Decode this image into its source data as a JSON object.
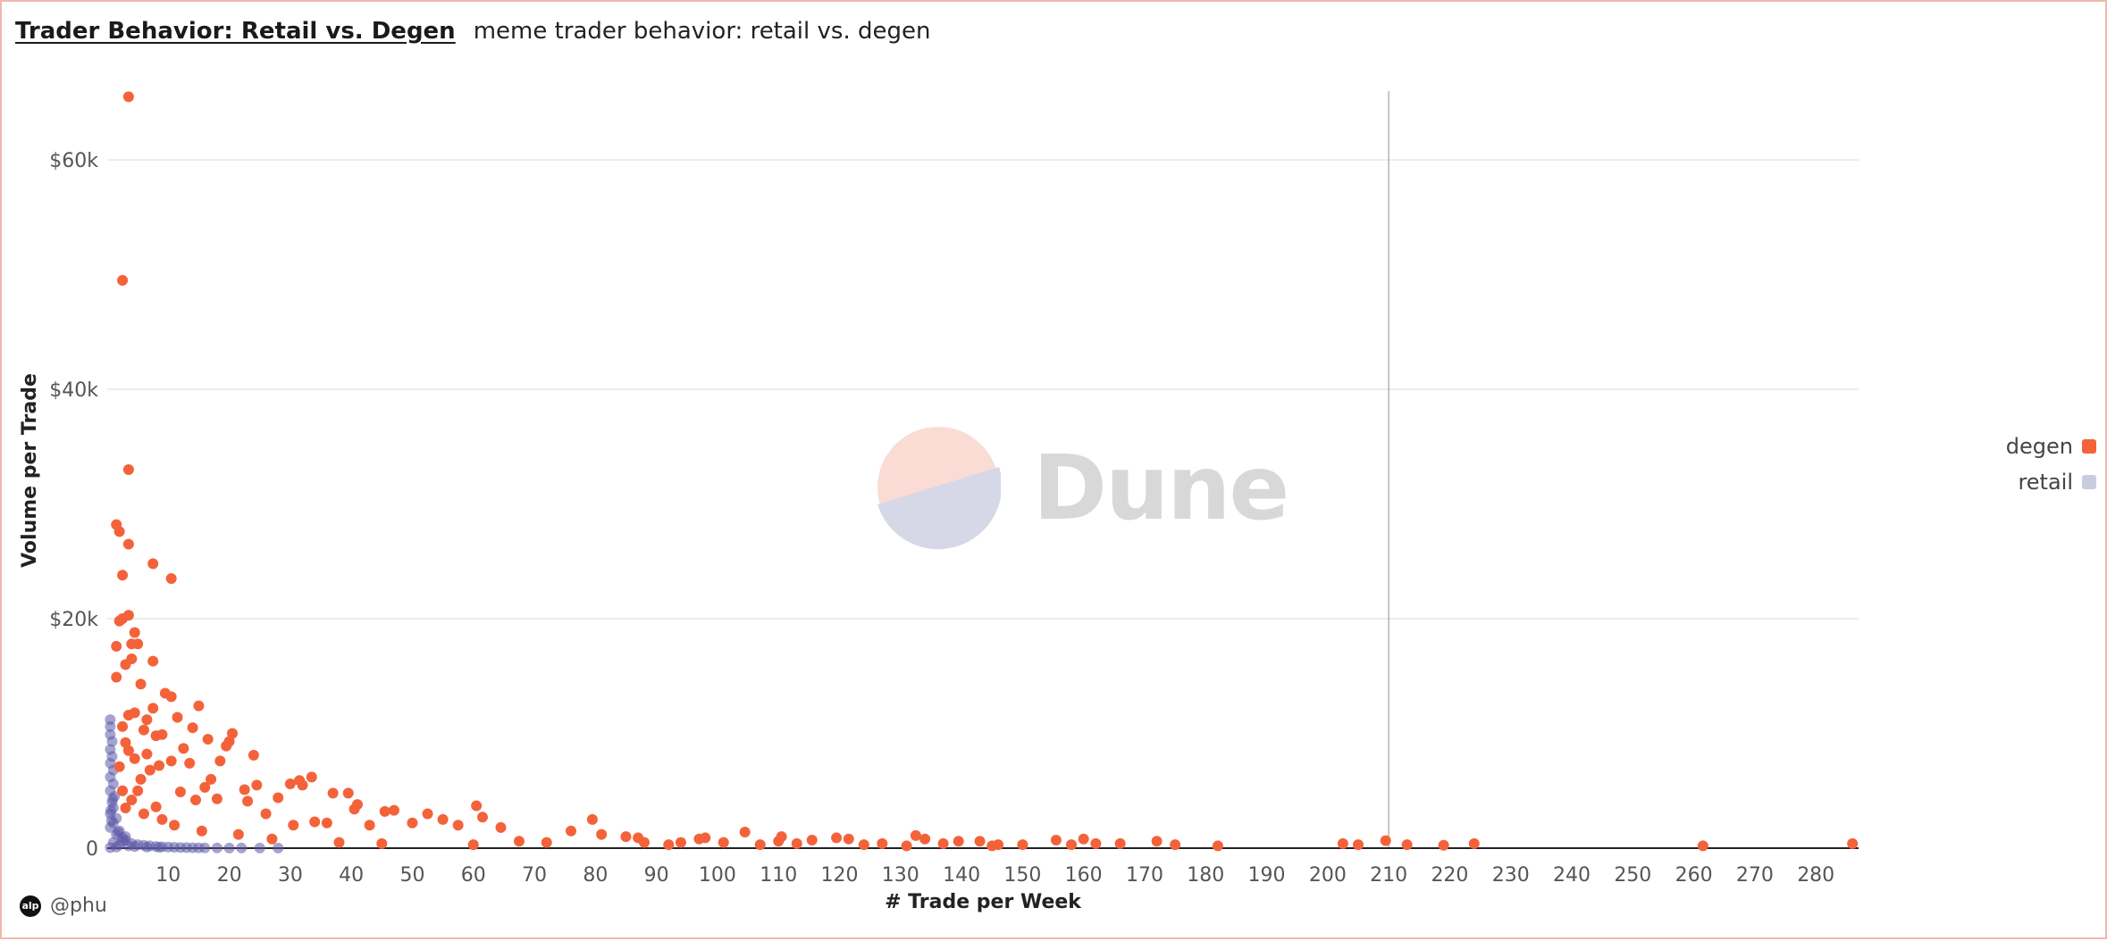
{
  "header": {
    "title": "Trader Behavior: Retail vs. Degen",
    "subtitle": "meme trader behavior: retail vs. degen"
  },
  "legend": [
    {
      "name": "degen",
      "color": "#f4623a"
    },
    {
      "name": "retail",
      "color": "#c9cbe0"
    }
  ],
  "watermark": {
    "text": "Dune",
    "top_color": "#fadcd5",
    "bottom_color": "#d6d8e8"
  },
  "footer": {
    "avatar_text": "alp",
    "handle": "@phu"
  },
  "chart_data": {
    "type": "scatter",
    "title": "Trader Behavior: Retail vs. Degen",
    "xlabel": "# Trade per Week",
    "ylabel": "Volume per Trade",
    "xlim": [
      0,
      287
    ],
    "ylim": [
      0,
      66000
    ],
    "x_ticks": [
      10,
      20,
      30,
      40,
      50,
      60,
      70,
      80,
      90,
      100,
      110,
      120,
      130,
      140,
      150,
      160,
      170,
      180,
      190,
      200,
      210,
      220,
      230,
      240,
      250,
      260,
      270,
      280
    ],
    "x_tick_labels": [
      "10",
      "20",
      "30",
      "40",
      "50",
      "60",
      "70",
      "80",
      "90",
      "100",
      "110",
      "120",
      "130",
      "140",
      "150",
      "160",
      "170",
      "180",
      "190",
      "200",
      "210",
      "220",
      "230",
      "240",
      "250",
      "260",
      "270",
      "280"
    ],
    "y_ticks": [
      0,
      20000,
      40000,
      60000
    ],
    "y_tick_labels": [
      "0",
      "$20k",
      "$40k",
      "$60k"
    ],
    "grid": true,
    "legend_position": "right",
    "crosshair_x": 210,
    "series": [
      {
        "name": "degen",
        "color": "#f4623a",
        "points": [
          [
            3.5,
            65500
          ],
          [
            2.5,
            49500
          ],
          [
            3.5,
            33000
          ],
          [
            1.5,
            28200
          ],
          [
            2.0,
            27600
          ],
          [
            3.5,
            26500
          ],
          [
            2.5,
            23800
          ],
          [
            7.5,
            24800
          ],
          [
            10.5,
            23500
          ],
          [
            2.5,
            20000
          ],
          [
            3.5,
            20300
          ],
          [
            2.0,
            19800
          ],
          [
            4.5,
            18800
          ],
          [
            1.5,
            17600
          ],
          [
            4.0,
            17800
          ],
          [
            5.0,
            17800
          ],
          [
            3.0,
            16000
          ],
          [
            4.0,
            16500
          ],
          [
            7.5,
            16300
          ],
          [
            1.5,
            14900
          ],
          [
            5.5,
            14300
          ],
          [
            9.5,
            13500
          ],
          [
            10.5,
            13200
          ],
          [
            15.0,
            12400
          ],
          [
            7.5,
            12200
          ],
          [
            3.5,
            11600
          ],
          [
            4.5,
            11800
          ],
          [
            11.5,
            11400
          ],
          [
            14.0,
            10500
          ],
          [
            6.0,
            10300
          ],
          [
            2.5,
            10600
          ],
          [
            20.5,
            10000
          ],
          [
            9.0,
            9900
          ],
          [
            16.5,
            9500
          ],
          [
            20.0,
            9300
          ],
          [
            19.5,
            8900
          ],
          [
            3.0,
            9200
          ],
          [
            12.5,
            8700
          ],
          [
            24.0,
            8100
          ],
          [
            6.5,
            8200
          ],
          [
            4.5,
            7800
          ],
          [
            18.5,
            7600
          ],
          [
            13.5,
            7400
          ],
          [
            10.5,
            7600
          ],
          [
            8.5,
            7200
          ],
          [
            2.0,
            7100
          ],
          [
            33.5,
            6200
          ],
          [
            31.5,
            5900
          ],
          [
            30.0,
            5600
          ],
          [
            32.0,
            5500
          ],
          [
            17.0,
            6000
          ],
          [
            24.5,
            5500
          ],
          [
            16.0,
            5300
          ],
          [
            22.5,
            5100
          ],
          [
            5.0,
            5000
          ],
          [
            12.0,
            4900
          ],
          [
            37.0,
            4800
          ],
          [
            39.5,
            4800
          ],
          [
            28.0,
            4400
          ],
          [
            18.0,
            4300
          ],
          [
            23.0,
            4100
          ],
          [
            14.5,
            4200
          ],
          [
            41.0,
            3800
          ],
          [
            60.5,
            3700
          ],
          [
            40.5,
            3400
          ],
          [
            47.0,
            3300
          ],
          [
            45.5,
            3200
          ],
          [
            52.5,
            3000
          ],
          [
            26.0,
            3000
          ],
          [
            8.0,
            3600
          ],
          [
            61.5,
            2700
          ],
          [
            79.5,
            2500
          ],
          [
            55.0,
            2500
          ],
          [
            34.0,
            2300
          ],
          [
            36.0,
            2200
          ],
          [
            50.0,
            2200
          ],
          [
            57.5,
            2000
          ],
          [
            30.5,
            2000
          ],
          [
            43.0,
            2000
          ],
          [
            64.5,
            1800
          ],
          [
            104.5,
            1400
          ],
          [
            76.0,
            1500
          ],
          [
            81.0,
            1200
          ],
          [
            85.0,
            1000
          ],
          [
            110.5,
            1000
          ],
          [
            119.5,
            900
          ],
          [
            132.5,
            1100
          ],
          [
            87.0,
            900
          ],
          [
            98.0,
            900
          ],
          [
            97.0,
            800
          ],
          [
            121.5,
            800
          ],
          [
            160.0,
            800
          ],
          [
            134.0,
            800
          ],
          [
            115.5,
            700
          ],
          [
            155.5,
            700
          ],
          [
            139.5,
            600
          ],
          [
            143.0,
            600
          ],
          [
            110.0,
            600
          ],
          [
            209.5,
            650
          ],
          [
            172.0,
            600
          ],
          [
            67.5,
            600
          ],
          [
            72.0,
            500
          ],
          [
            88.0,
            500
          ],
          [
            94.0,
            500
          ],
          [
            101.0,
            500
          ],
          [
            113.0,
            400
          ],
          [
            127.0,
            400
          ],
          [
            137.0,
            400
          ],
          [
            146.0,
            300
          ],
          [
            150.0,
            300
          ],
          [
            162.0,
            400
          ],
          [
            166.0,
            400
          ],
          [
            175.0,
            300
          ],
          [
            182.0,
            200
          ],
          [
            202.5,
            400
          ],
          [
            205.0,
            300
          ],
          [
            213.0,
            300
          ],
          [
            219.0,
            250
          ],
          [
            224.0,
            400
          ],
          [
            261.5,
            200
          ],
          [
            286.0,
            400
          ],
          [
            92.0,
            300
          ],
          [
            107.0,
            300
          ],
          [
            124.0,
            300
          ],
          [
            131.0,
            200
          ],
          [
            145.0,
            200
          ],
          [
            158.0,
            300
          ],
          [
            60.0,
            300
          ],
          [
            45.0,
            400
          ],
          [
            38.0,
            500
          ],
          [
            27.0,
            800
          ],
          [
            21.5,
            1200
          ],
          [
            15.5,
            1500
          ],
          [
            11.0,
            2000
          ],
          [
            9.0,
            2500
          ],
          [
            6.0,
            3000
          ],
          [
            3.0,
            3500
          ],
          [
            4.0,
            4200
          ],
          [
            2.5,
            5000
          ],
          [
            5.5,
            6000
          ],
          [
            7.0,
            6800
          ],
          [
            3.5,
            8500
          ],
          [
            8.0,
            9800
          ],
          [
            6.5,
            11200
          ]
        ]
      },
      {
        "name": "retail",
        "color": "#5c5aa8",
        "points": [
          [
            0.5,
            11200
          ],
          [
            0.5,
            10600
          ],
          [
            0.5,
            9900
          ],
          [
            0.8,
            9300
          ],
          [
            0.5,
            8600
          ],
          [
            0.8,
            8000
          ],
          [
            0.5,
            7400
          ],
          [
            1.0,
            6800
          ],
          [
            0.5,
            6200
          ],
          [
            1.0,
            5600
          ],
          [
            0.5,
            5000
          ],
          [
            1.2,
            4500
          ],
          [
            0.8,
            4000
          ],
          [
            1.0,
            3500
          ],
          [
            0.5,
            3000
          ],
          [
            1.5,
            2600
          ],
          [
            1.0,
            2200
          ],
          [
            0.5,
            1800
          ],
          [
            2.0,
            1500
          ],
          [
            1.5,
            1200
          ],
          [
            2.5,
            900
          ],
          [
            3.0,
            700
          ],
          [
            1.0,
            500
          ],
          [
            4.0,
            400
          ],
          [
            5.0,
            300
          ],
          [
            6.0,
            250
          ],
          [
            7.0,
            200
          ],
          [
            8.0,
            150
          ],
          [
            9.0,
            120
          ],
          [
            10.0,
            100
          ],
          [
            11.0,
            80
          ],
          [
            12.0,
            60
          ],
          [
            13.0,
            50
          ],
          [
            14.0,
            40
          ],
          [
            15.0,
            30
          ],
          [
            16.0,
            20
          ],
          [
            18.0,
            20
          ],
          [
            20.0,
            10
          ],
          [
            2.0,
            300
          ],
          [
            3.5,
            200
          ],
          [
            1.5,
            100
          ],
          [
            0.5,
            50
          ],
          [
            2.5,
            600
          ],
          [
            3.0,
            1000
          ],
          [
            1.8,
            1400
          ],
          [
            0.7,
            2400
          ],
          [
            0.6,
            3300
          ],
          [
            0.9,
            4300
          ],
          [
            4.5,
            150
          ],
          [
            6.5,
            100
          ],
          [
            8.5,
            80
          ],
          [
            22.0,
            15
          ],
          [
            25.0,
            10
          ],
          [
            28.0,
            8
          ]
        ]
      }
    ]
  }
}
